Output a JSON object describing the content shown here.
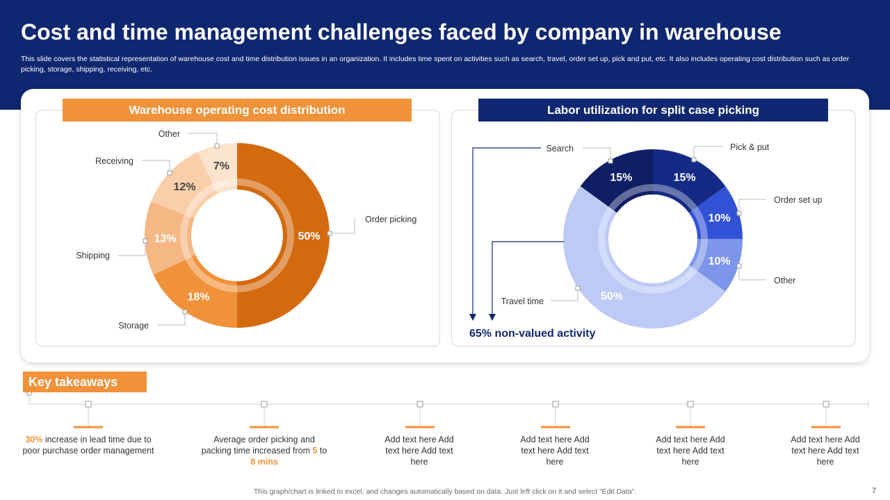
{
  "header": {
    "title": "Cost and time management challenges faced by company in warehouse",
    "subtitle": "This slide covers the statistical representation of warehouse cost and time distribution issues in an organization. It includes time spent on activities such as search, travel, order set up, pick and put,  etc. It also includes operating cost distribution such as order picking, storage, shipping, receiving, etc."
  },
  "chart_data": [
    {
      "type": "pie",
      "title": "Warehouse operating cost distribution",
      "categories": [
        "Order picking",
        "Storage",
        "Shipping",
        "Receiving",
        "Other"
      ],
      "values": [
        50,
        18,
        13,
        12,
        7
      ],
      "value_labels": [
        "50%",
        "18%",
        "13%",
        "12%",
        "7%"
      ],
      "colors": [
        "#d46a10",
        "#f0923a",
        "#f5b784",
        "#f9cfaa",
        "#fbe3cd"
      ]
    },
    {
      "type": "pie",
      "title": "Labor utilization for split case picking",
      "categories": [
        "Pick & put",
        "Order set up",
        "Other",
        "Travel time",
        "Search"
      ],
      "values": [
        15,
        10,
        10,
        50,
        15
      ],
      "value_labels": [
        "15%",
        "10%",
        "10%",
        "50%",
        "15%"
      ],
      "colors": [
        "#152a85",
        "#3252d6",
        "#7d95ea",
        "#bccaf5",
        "#0f1f66"
      ],
      "annotation": "65% non-valued activity"
    }
  ],
  "takeaways": {
    "label": "Key takeaways",
    "items": [
      {
        "highlight": "30%",
        "text": " increase in lead time due to poor purchase order management"
      },
      {
        "text": "Average  order picking and packing time increased from ",
        "h1": "5",
        "mid": " to ",
        "h2": "8 mins"
      },
      {
        "text": "Add text here Add text here Add text here"
      },
      {
        "text": "Add text here Add text here Add text here"
      },
      {
        "text": "Add text here Add text here Add text here"
      },
      {
        "text": "Add text here Add text here Add text here"
      }
    ]
  },
  "footer": {
    "note": "This graph/chart is linked to excel,  and changes automatically based on data. Just left click on it and select “Edit Data”.",
    "page": "7"
  },
  "colors": {
    "navy": "#0f2770",
    "orange": "#f0923a"
  }
}
